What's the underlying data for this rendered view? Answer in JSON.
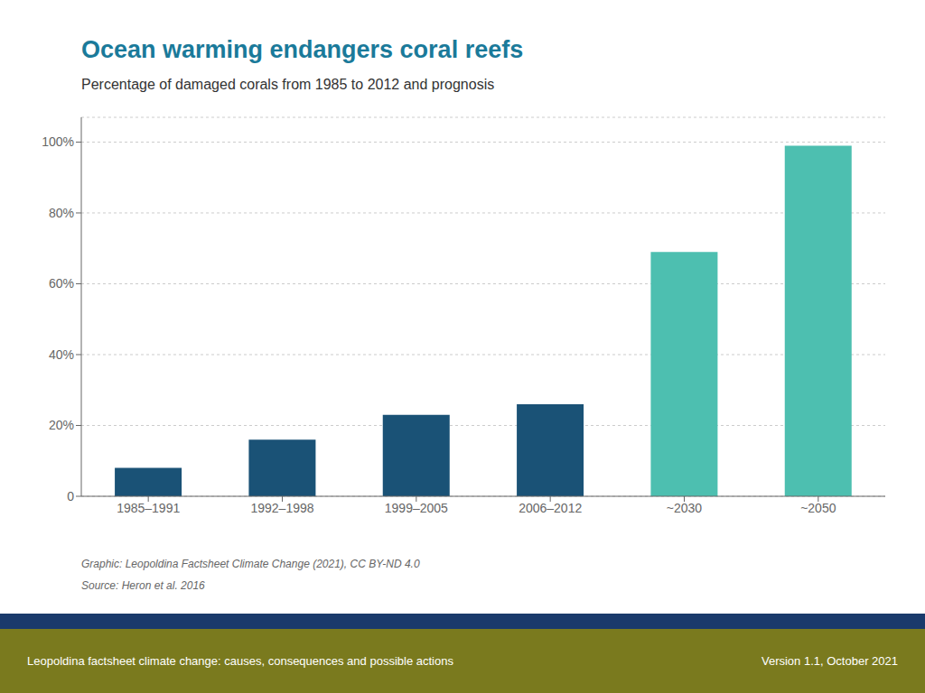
{
  "chart_data": {
    "type": "bar",
    "title": "Ocean warming endangers coral reefs",
    "subtitle": "Percentage of damaged corals from 1985 to 2012 and prognosis",
    "categories": [
      "1985–1991",
      "1992–1998",
      "1999–2005",
      "2006–2012",
      "~2030",
      "~2050"
    ],
    "values": [
      8,
      16,
      23,
      26,
      69,
      99
    ],
    "colors": [
      "#1a5276",
      "#1a5276",
      "#1a5276",
      "#1a5276",
      "#4dbfb0",
      "#4dbfb0"
    ],
    "ylim": [
      0,
      107
    ],
    "yticks": [
      0,
      {
        "value": 20,
        "label": "20%"
      },
      {
        "value": 40,
        "label": "40%"
      },
      {
        "value": 60,
        "label": "60%"
      },
      {
        "value": 80,
        "label": "80%"
      },
      {
        "value": 100,
        "label": "100%"
      }
    ],
    "grid": true,
    "annotations": [
      "Graphic: Leopoldina Factsheet Climate Change (2021), CC BY-ND 4.0",
      "Source: Heron et al. 2016",
      "Leopoldina factsheet climate change: causes, consequences and possible actions",
      "Version 1.1, October 2021"
    ]
  }
}
